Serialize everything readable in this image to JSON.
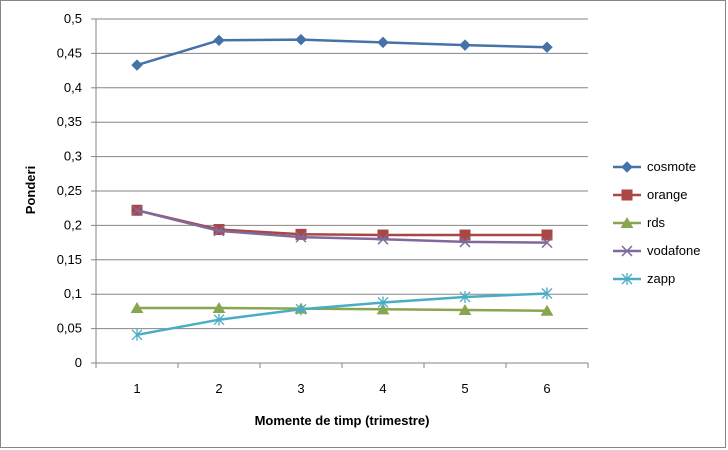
{
  "chart_data": {
    "type": "line",
    "title": "",
    "xlabel": "Momente de timp (trimestre)",
    "ylabel": "Ponderi",
    "x": [
      1,
      2,
      3,
      4,
      5,
      6
    ],
    "x_tick_labels": [
      "1",
      "2",
      "3",
      "4",
      "5",
      "6"
    ],
    "ylim": [
      0,
      0.5
    ],
    "y_ticks": [
      0,
      0.05,
      0.1,
      0.15,
      0.2,
      0.25,
      0.3,
      0.35,
      0.4,
      0.45,
      0.5
    ],
    "y_tick_labels": [
      "0",
      "0,05",
      "0,1",
      "0,15",
      "0,2",
      "0,25",
      "0,3",
      "0,35",
      "0,4",
      "0,45",
      "0,5"
    ],
    "grid": "horizontal",
    "legend_position": "right",
    "series": [
      {
        "name": "cosmote",
        "color": "#4572A7",
        "marker": "diamond",
        "values": [
          0.433,
          0.469,
          0.47,
          0.466,
          0.462,
          0.459
        ]
      },
      {
        "name": "orange",
        "color": "#AA4643",
        "marker": "square",
        "values": [
          0.222,
          0.194,
          0.187,
          0.186,
          0.186,
          0.186
        ]
      },
      {
        "name": "rds",
        "color": "#89A54E",
        "marker": "triangle",
        "values": [
          0.08,
          0.08,
          0.079,
          0.078,
          0.077,
          0.076
        ]
      },
      {
        "name": "vodafone",
        "color": "#80699B",
        "marker": "x",
        "values": [
          0.222,
          0.192,
          0.183,
          0.18,
          0.176,
          0.175
        ]
      },
      {
        "name": "zapp",
        "color": "#4BACC6",
        "marker": "star",
        "values": [
          0.041,
          0.063,
          0.078,
          0.088,
          0.096,
          0.101
        ]
      }
    ]
  }
}
